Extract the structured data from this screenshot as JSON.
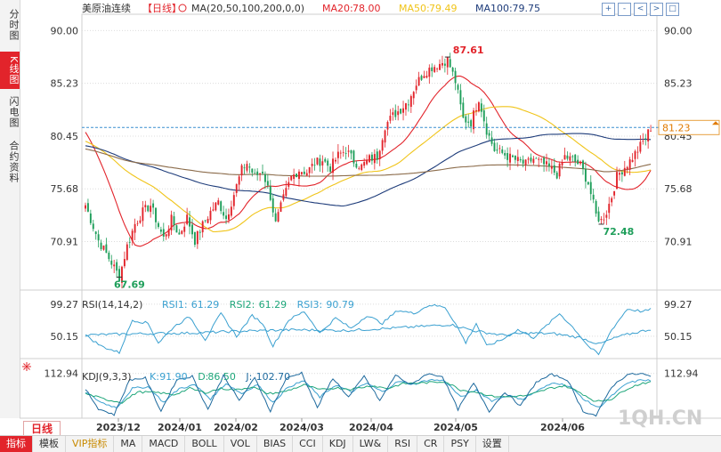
{
  "sidebar": {
    "tabs": [
      {
        "label": "分时图",
        "active": false
      },
      {
        "label": "K线图",
        "active": true
      },
      {
        "label": "闪电图",
        "active": false
      },
      {
        "label": "合约资料",
        "active": false
      }
    ]
  },
  "toolbar": {
    "icons": [
      "zoom-in-icon",
      "zoom-out-icon",
      "pan-left-icon",
      "pan-right-icon",
      "maximize-icon"
    ],
    "glyphs": [
      "+",
      "-",
      "<",
      ">",
      "□"
    ]
  },
  "period_label": "日线",
  "bottom_tabs": [
    {
      "label": "指标",
      "active": true
    },
    {
      "label": "模板"
    },
    {
      "label": "VIP指标",
      "vip": true
    },
    {
      "label": "MA"
    },
    {
      "label": "MACD"
    },
    {
      "label": "BOLL"
    },
    {
      "label": "VOL"
    },
    {
      "label": "BIAS"
    },
    {
      "label": "CCI"
    },
    {
      "label": "KDJ"
    },
    {
      "label": "LW&"
    },
    {
      "label": "RSI"
    },
    {
      "label": "CR"
    },
    {
      "label": "PSY"
    },
    {
      "label": "设置"
    }
  ],
  "watermark": "1QH.CN",
  "colors": {
    "up": "#e2242b",
    "down": "#1e9e5a",
    "ma20": "#e2242b",
    "ma50": "#f0c419",
    "ma100": "#1e3c7a",
    "ma200": "#8b6b4a",
    "accent": "#e2242b",
    "grid": "#dcdcdc",
    "dash": "#3a8fd0"
  },
  "chart_data": [
    {
      "type": "candlestick",
      "title": "美原油连续",
      "period": "【日线】",
      "indicator_label": "MA(20,50,100,200,0,0)",
      "legend": [
        {
          "name": "MA20",
          "value": "78.00",
          "color": "#e2242b"
        },
        {
          "name": "MA50",
          "value": "79.49",
          "color": "#f0c419"
        },
        {
          "name": "MA100",
          "value": "79.75",
          "color": "#1e3c7a"
        }
      ],
      "ylim": [
        67.0,
        91.0
      ],
      "y_ticks": [
        "90.00",
        "85.23",
        "80.45",
        "75.68",
        "70.91"
      ],
      "x_ticks": [
        "2023/12",
        "2024/01",
        "2024/02",
        "2024/03",
        "2024/04",
        "2024/05",
        "2024/06"
      ],
      "last_price": "81.23",
      "annotations": [
        {
          "text": "87.61",
          "kind": "high"
        },
        {
          "text": "67.69",
          "kind": "low"
        },
        {
          "text": "72.48",
          "kind": "low"
        }
      ],
      "anchors": [
        [
          0,
          74.2
        ],
        [
          5,
          71.0
        ],
        [
          10,
          69.0
        ],
        [
          13,
          67.7
        ],
        [
          16,
          70.5
        ],
        [
          19,
          72.5
        ],
        [
          22,
          73.6
        ],
        [
          25,
          74.2
        ],
        [
          28,
          72.3
        ],
        [
          30,
          71.2
        ],
        [
          33,
          72.9
        ],
        [
          36,
          71.5
        ],
        [
          39,
          73.1
        ],
        [
          42,
          71.0
        ],
        [
          45,
          72.4
        ],
        [
          48,
          73.6
        ],
        [
          51,
          74.5
        ],
        [
          54,
          73.0
        ],
        [
          57,
          75.2
        ],
        [
          60,
          77.4
        ],
        [
          62,
          78.0
        ],
        [
          65,
          76.8
        ],
        [
          68,
          77.3
        ],
        [
          71,
          75.0
        ],
        [
          73,
          72.5
        ],
        [
          76,
          74.8
        ],
        [
          79,
          76.7
        ],
        [
          82,
          77.4
        ],
        [
          85,
          77.2
        ],
        [
          88,
          78.0
        ],
        [
          91,
          78.3
        ],
        [
          94,
          77.6
        ],
        [
          97,
          78.7
        ],
        [
          100,
          79.2
        ],
        [
          103,
          78.2
        ],
        [
          106,
          77.7
        ],
        [
          109,
          78.4
        ],
        [
          112,
          78.6
        ],
        [
          115,
          81.4
        ],
        [
          118,
          82.3
        ],
        [
          121,
          82.9
        ],
        [
          124,
          83.7
        ],
        [
          127,
          85.2
        ],
        [
          130,
          86.2
        ],
        [
          133,
          86.7
        ],
        [
          136,
          87.0
        ],
        [
          139,
          87.4
        ],
        [
          142,
          85.4
        ],
        [
          145,
          82.0
        ],
        [
          148,
          81.7
        ],
        [
          151,
          83.9
        ],
        [
          154,
          81.0
        ],
        [
          157,
          79.2
        ],
        [
          160,
          78.9
        ],
        [
          163,
          78.5
        ],
        [
          166,
          78.2
        ],
        [
          169,
          77.9
        ],
        [
          172,
          78.4
        ],
        [
          175,
          78.0
        ],
        [
          178,
          77.6
        ],
        [
          181,
          77.0
        ],
        [
          184,
          78.6
        ],
        [
          187,
          78.3
        ],
        [
          190,
          77.8
        ],
        [
          193,
          76.2
        ],
        [
          196,
          73.3
        ],
        [
          198,
          72.8
        ],
        [
          200,
          73.6
        ],
        [
          202,
          75.0
        ],
        [
          204,
          76.8
        ],
        [
          206,
          77.4
        ],
        [
          209,
          78.2
        ],
        [
          212,
          79.2
        ],
        [
          215,
          80.3
        ],
        [
          217,
          81.23
        ]
      ]
    },
    {
      "type": "line",
      "title": "RSI(14,14,2)",
      "legend": [
        {
          "name": "RSI1",
          "value": "61.29",
          "color": "#3aa0d0"
        },
        {
          "name": "RSI2",
          "value": "61.29",
          "color": "#1ea67a"
        },
        {
          "name": "RSI3",
          "value": "90.79",
          "color": "#3aa0d0"
        }
      ],
      "ylim": [
        20,
        110
      ],
      "y_ticks": [
        "99.27",
        "50.15"
      ],
      "series": [
        {
          "name": "RSI1",
          "anchors": [
            [
              0,
              52
            ],
            [
              20,
              54
            ],
            [
              40,
              55
            ],
            [
              60,
              58
            ],
            [
              80,
              60
            ],
            [
              100,
              59
            ],
            [
              120,
              63
            ],
            [
              140,
              68
            ],
            [
              150,
              58
            ],
            [
              160,
              52
            ],
            [
              170,
              55
            ],
            [
              180,
              54
            ],
            [
              190,
              48
            ],
            [
              197,
              38
            ],
            [
              205,
              50
            ],
            [
              217,
              61
            ]
          ]
        },
        {
          "name": "RSI3",
          "anchors": [
            [
              0,
              52
            ],
            [
              6,
              35
            ],
            [
              13,
              25
            ],
            [
              18,
              75
            ],
            [
              24,
              70
            ],
            [
              28,
              40
            ],
            [
              34,
              65
            ],
            [
              40,
              80
            ],
            [
              46,
              45
            ],
            [
              52,
              85
            ],
            [
              58,
              50
            ],
            [
              64,
              82
            ],
            [
              68,
              70
            ],
            [
              72,
              35
            ],
            [
              78,
              75
            ],
            [
              84,
              88
            ],
            [
              90,
              55
            ],
            [
              96,
              78
            ],
            [
              102,
              62
            ],
            [
              108,
              82
            ],
            [
              114,
              70
            ],
            [
              120,
              90
            ],
            [
              126,
              85
            ],
            [
              132,
              98
            ],
            [
              138,
              95
            ],
            [
              142,
              70
            ],
            [
              146,
              40
            ],
            [
              150,
              70
            ],
            [
              154,
              35
            ],
            [
              160,
              45
            ],
            [
              166,
              60
            ],
            [
              172,
              48
            ],
            [
              178,
              70
            ],
            [
              182,
              85
            ],
            [
              188,
              60
            ],
            [
              193,
              35
            ],
            [
              197,
              22
            ],
            [
              202,
              60
            ],
            [
              208,
              92
            ],
            [
              214,
              88
            ],
            [
              217,
              91
            ]
          ]
        }
      ]
    },
    {
      "type": "line",
      "title": "KDJ(9,3,3)",
      "legend": [
        {
          "name": "K",
          "value": "91.90",
          "color": "#3aa0d0"
        },
        {
          "name": "D",
          "value": "86.50",
          "color": "#1ea67a"
        },
        {
          "name": "J",
          "value": "102.70",
          "color": "#1e6a9e"
        }
      ],
      "ylim": [
        -10,
        125
      ],
      "y_ticks": [
        "112.94"
      ],
      "series": [
        {
          "name": "K",
          "anchors": [
            [
              0,
              60
            ],
            [
              6,
              30
            ],
            [
              12,
              15
            ],
            [
              18,
              70
            ],
            [
              24,
              75
            ],
            [
              30,
              30
            ],
            [
              36,
              70
            ],
            [
              42,
              80
            ],
            [
              48,
              40
            ],
            [
              54,
              85
            ],
            [
              60,
              55
            ],
            [
              66,
              82
            ],
            [
              72,
              30
            ],
            [
              78,
              75
            ],
            [
              84,
              92
            ],
            [
              90,
              45
            ],
            [
              96,
              80
            ],
            [
              102,
              60
            ],
            [
              108,
              85
            ],
            [
              114,
              60
            ],
            [
              120,
              90
            ],
            [
              126,
              82
            ],
            [
              132,
              95
            ],
            [
              138,
              92
            ],
            [
              144,
              45
            ],
            [
              150,
              65
            ],
            [
              156,
              35
            ],
            [
              162,
              50
            ],
            [
              168,
              40
            ],
            [
              174,
              65
            ],
            [
              180,
              88
            ],
            [
              186,
              75
            ],
            [
              192,
              35
            ],
            [
              197,
              15
            ],
            [
              203,
              55
            ],
            [
              208,
              85
            ],
            [
              214,
              95
            ],
            [
              217,
              92
            ]
          ]
        },
        {
          "name": "D",
          "anchors": [
            [
              0,
              55
            ],
            [
              8,
              38
            ],
            [
              14,
              30
            ],
            [
              20,
              60
            ],
            [
              28,
              58
            ],
            [
              34,
              52
            ],
            [
              40,
              70
            ],
            [
              46,
              58
            ],
            [
              52,
              70
            ],
            [
              58,
              66
            ],
            [
              64,
              75
            ],
            [
              70,
              55
            ],
            [
              76,
              60
            ],
            [
              84,
              80
            ],
            [
              90,
              66
            ],
            [
              96,
              72
            ],
            [
              102,
              68
            ],
            [
              110,
              78
            ],
            [
              116,
              70
            ],
            [
              122,
              84
            ],
            [
              130,
              86
            ],
            [
              138,
              90
            ],
            [
              144,
              66
            ],
            [
              150,
              60
            ],
            [
              156,
              48
            ],
            [
              162,
              46
            ],
            [
              170,
              50
            ],
            [
              178,
              70
            ],
            [
              184,
              78
            ],
            [
              190,
              58
            ],
            [
              196,
              32
            ],
            [
              202,
              40
            ],
            [
              208,
              70
            ],
            [
              214,
              86
            ],
            [
              217,
              87
            ]
          ]
        },
        {
          "name": "J",
          "anchors": [
            [
              0,
              68
            ],
            [
              5,
              12
            ],
            [
              11,
              -5
            ],
            [
              17,
              95
            ],
            [
              23,
              100
            ],
            [
              29,
              5
            ],
            [
              35,
              95
            ],
            [
              41,
              105
            ],
            [
              47,
              10
            ],
            [
              53,
              108
            ],
            [
              59,
              35
            ],
            [
              65,
              100
            ],
            [
              71,
              5
            ],
            [
              77,
              98
            ],
            [
              83,
              115
            ],
            [
              89,
              15
            ],
            [
              95,
              100
            ],
            [
              101,
              45
            ],
            [
              107,
              105
            ],
            [
              113,
              35
            ],
            [
              119,
              108
            ],
            [
              125,
              80
            ],
            [
              131,
              112
            ],
            [
              137,
              105
            ],
            [
              143,
              10
            ],
            [
              149,
              85
            ],
            [
              155,
              5
            ],
            [
              161,
              60
            ],
            [
              167,
              20
            ],
            [
              173,
              88
            ],
            [
              179,
              110
            ],
            [
              185,
              95
            ],
            [
              191,
              5
            ],
            [
              196,
              -8
            ],
            [
              202,
              75
            ],
            [
              208,
              110
            ],
            [
              214,
              112
            ],
            [
              217,
              103
            ]
          ]
        }
      ]
    }
  ]
}
